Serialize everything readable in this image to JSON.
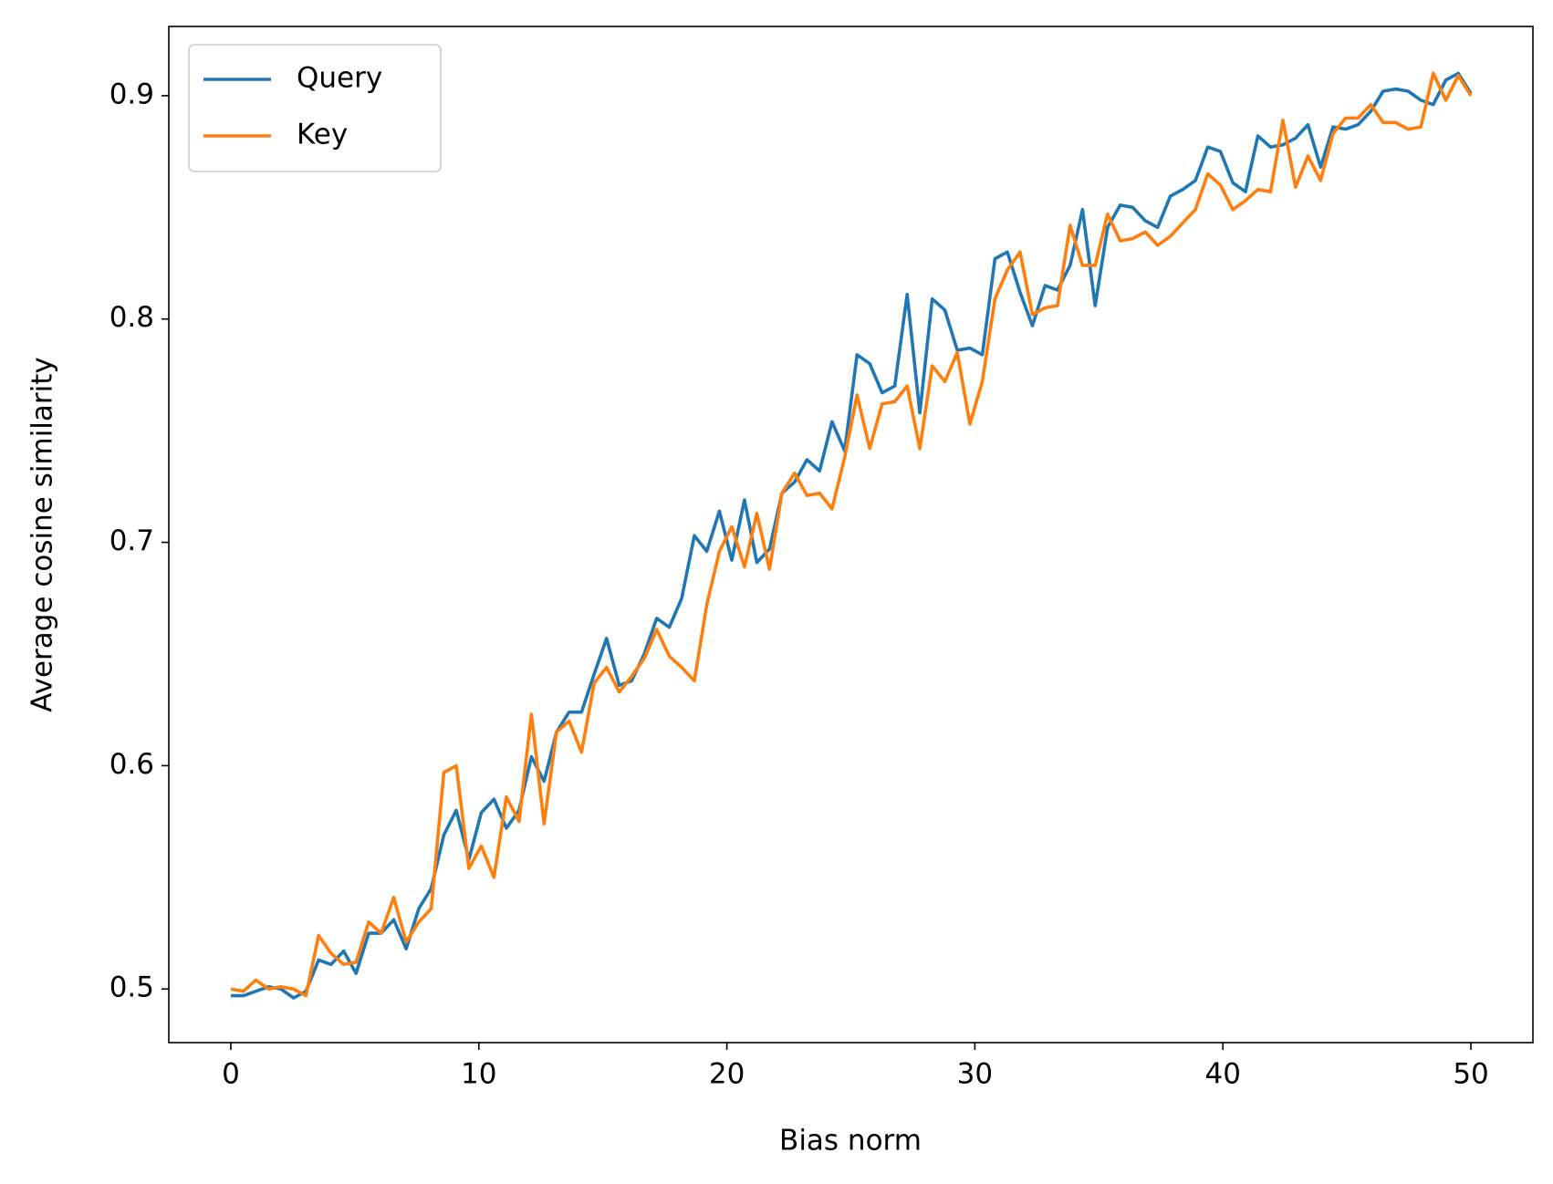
{
  "chart_data": {
    "type": "line",
    "xlabel": "Bias norm",
    "ylabel": "Average cosine similarity",
    "x": [
      0,
      0.51,
      1.01,
      1.52,
      2.02,
      2.53,
      3.03,
      3.54,
      4.04,
      4.55,
      5.05,
      5.56,
      6.06,
      6.57,
      7.07,
      7.58,
      8.08,
      8.59,
      9.09,
      9.6,
      10.1,
      10.61,
      11.11,
      11.62,
      12.12,
      12.63,
      13.13,
      13.64,
      14.14,
      14.65,
      15.15,
      15.66,
      16.16,
      16.67,
      17.17,
      17.68,
      18.18,
      18.69,
      19.19,
      19.7,
      20.2,
      20.71,
      21.21,
      21.72,
      22.22,
      22.73,
      23.23,
      23.74,
      24.24,
      24.75,
      25.25,
      25.76,
      26.26,
      26.77,
      27.27,
      27.78,
      28.28,
      28.79,
      29.29,
      29.8,
      30.3,
      30.81,
      31.31,
      31.82,
      32.32,
      32.83,
      33.33,
      33.84,
      34.34,
      34.85,
      35.35,
      35.86,
      36.36,
      36.87,
      37.37,
      37.88,
      38.38,
      38.89,
      39.39,
      39.9,
      40.4,
      40.91,
      41.41,
      41.92,
      42.42,
      42.93,
      43.43,
      43.94,
      44.44,
      44.95,
      45.45,
      45.96,
      46.46,
      46.97,
      47.47,
      47.98,
      48.48,
      48.99,
      49.49,
      50
    ],
    "series": [
      {
        "name": "Query",
        "color": "#1f77b4",
        "values": [
          0.497,
          0.497,
          0.499,
          0.501,
          0.5,
          0.496,
          0.499,
          0.513,
          0.511,
          0.517,
          0.507,
          0.525,
          0.525,
          0.531,
          0.518,
          0.536,
          0.545,
          0.569,
          0.58,
          0.558,
          0.579,
          0.585,
          0.572,
          0.58,
          0.604,
          0.593,
          0.615,
          0.624,
          0.624,
          0.641,
          0.657,
          0.636,
          0.638,
          0.65,
          0.666,
          0.662,
          0.675,
          0.703,
          0.696,
          0.714,
          0.692,
          0.719,
          0.691,
          0.697,
          0.722,
          0.727,
          0.737,
          0.732,
          0.754,
          0.741,
          0.784,
          0.78,
          0.767,
          0.77,
          0.811,
          0.758,
          0.809,
          0.804,
          0.786,
          0.787,
          0.784,
          0.827,
          0.83,
          0.812,
          0.797,
          0.815,
          0.813,
          0.824,
          0.849,
          0.806,
          0.841,
          0.851,
          0.85,
          0.844,
          0.841,
          0.855,
          0.858,
          0.862,
          0.877,
          0.875,
          0.861,
          0.857,
          0.882,
          0.877,
          0.878,
          0.881,
          0.887,
          0.868,
          0.886,
          0.885,
          0.887,
          0.893,
          0.902,
          0.903,
          0.902,
          0.898,
          0.896,
          0.907,
          0.91,
          0.901
        ]
      },
      {
        "name": "Key",
        "color": "#ff7f0e",
        "values": [
          0.5,
          0.499,
          0.504,
          0.5,
          0.501,
          0.5,
          0.497,
          0.524,
          0.516,
          0.511,
          0.512,
          0.53,
          0.525,
          0.541,
          0.521,
          0.53,
          0.536,
          0.597,
          0.6,
          0.554,
          0.564,
          0.55,
          0.586,
          0.575,
          0.623,
          0.574,
          0.615,
          0.62,
          0.606,
          0.637,
          0.644,
          0.633,
          0.64,
          0.648,
          0.661,
          0.649,
          0.644,
          0.638,
          0.672,
          0.696,
          0.707,
          0.689,
          0.713,
          0.688,
          0.722,
          0.731,
          0.721,
          0.722,
          0.715,
          0.738,
          0.766,
          0.742,
          0.762,
          0.763,
          0.77,
          0.742,
          0.779,
          0.772,
          0.785,
          0.753,
          0.772,
          0.809,
          0.822,
          0.83,
          0.802,
          0.805,
          0.806,
          0.842,
          0.824,
          0.824,
          0.847,
          0.835,
          0.836,
          0.839,
          0.833,
          0.837,
          0.843,
          0.849,
          0.865,
          0.86,
          0.849,
          0.853,
          0.858,
          0.857,
          0.889,
          0.859,
          0.873,
          0.862,
          0.883,
          0.89,
          0.89,
          0.896,
          0.888,
          0.888,
          0.885,
          0.886,
          0.91,
          0.898,
          0.909,
          0.9
        ]
      }
    ],
    "xlim": [
      -2.5,
      52.5
    ],
    "xticks": [
      0,
      10,
      20,
      30,
      40,
      50
    ],
    "ylim": [
      0.476,
      0.931
    ],
    "yticks": [
      0.5,
      0.6,
      0.7,
      0.8,
      0.9
    ],
    "legend": "upper left",
    "grid": false
  }
}
